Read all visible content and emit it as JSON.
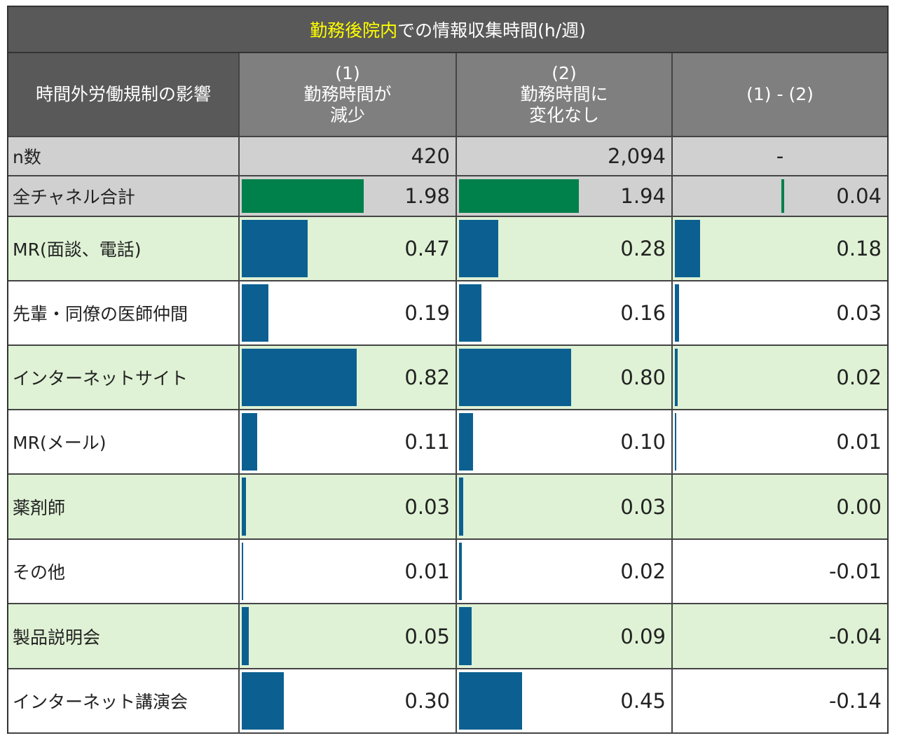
{
  "title": {
    "highlight": "勤務後院内",
    "rest": "での情報収集時間(h/週)"
  },
  "header": {
    "category": "時間外労働規制の影響",
    "col1": [
      "(1)",
      "勤務時間が",
      "減少"
    ],
    "col2": [
      "(2)",
      "勤務時間に",
      "変化なし"
    ],
    "col3": "(1) - (2)"
  },
  "colors": {
    "total_bar": "#00804a",
    "channel_bar": "#0b6091",
    "total_bg": "#d0d0d0",
    "alt_bg": "#dff2d5",
    "white_bg": "#ffffff",
    "header_dark": "#595959",
    "header_mid": "#7f7f7f"
  },
  "chart_data": {
    "type": "table",
    "title": "勤務後院内での情報収集時間(h/週)",
    "columns": [
      "(1) 勤務時間が減少",
      "(2) 勤務時間に変化なし",
      "(1) - (2)"
    ],
    "n": {
      "label": "n数",
      "values": [
        "420",
        "2,094",
        "-"
      ]
    },
    "total": {
      "label": "全チャネル合計",
      "values": [
        1.98,
        1.94,
        0.04
      ],
      "display": [
        "1.98",
        "1.94",
        "0.04"
      ]
    },
    "rows": [
      {
        "label": "MR(面談、電話)",
        "values": [
          0.47,
          0.28,
          0.18
        ],
        "display": [
          "0.47",
          "0.28",
          "0.18"
        ]
      },
      {
        "label": "先輩・同僚の医師仲間",
        "values": [
          0.19,
          0.16,
          0.03
        ],
        "display": [
          "0.19",
          "0.16",
          "0.03"
        ]
      },
      {
        "label": "インターネットサイト",
        "values": [
          0.82,
          0.8,
          0.02
        ],
        "display": [
          "0.82",
          "0.80",
          "0.02"
        ]
      },
      {
        "label": "MR(メール)",
        "values": [
          0.11,
          0.1,
          0.01
        ],
        "display": [
          "0.11",
          "0.10",
          "0.01"
        ]
      },
      {
        "label": "薬剤師",
        "values": [
          0.03,
          0.03,
          0.0
        ],
        "display": [
          "0.03",
          "0.03",
          "0.00"
        ]
      },
      {
        "label": "その他",
        "values": [
          0.01,
          0.02,
          -0.01
        ],
        "display": [
          "0.01",
          "0.02",
          "-0.01"
        ]
      },
      {
        "label": "製品説明会",
        "values": [
          0.05,
          0.09,
          -0.04
        ],
        "display": [
          "0.05",
          "0.09",
          "-0.04"
        ]
      },
      {
        "label": "インターネット講演会",
        "values": [
          0.3,
          0.45,
          -0.14
        ],
        "display": [
          "0.30",
          "0.45",
          "-0.14"
        ]
      }
    ]
  }
}
